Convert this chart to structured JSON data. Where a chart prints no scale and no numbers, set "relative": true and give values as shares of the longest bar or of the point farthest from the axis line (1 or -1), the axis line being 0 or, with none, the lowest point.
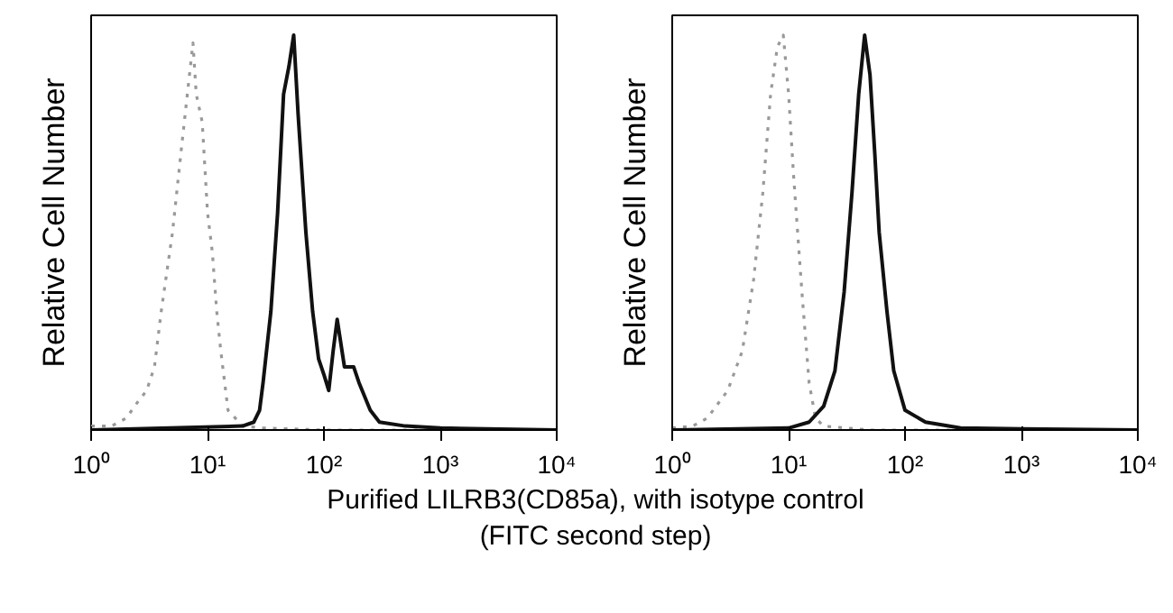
{
  "chart_data": [
    {
      "type": "line",
      "relative": true,
      "ylabel": "Relative Cell Number",
      "xlabel": "Purified LILRB3(CD85a), with isotype control\n(FITC second step)",
      "log": "x",
      "xlim": [
        1,
        10000
      ],
      "xticks": [
        {
          "value": 1,
          "label": "10⁰"
        },
        {
          "value": 10,
          "label": "10¹"
        },
        {
          "value": 100,
          "label": "10²"
        },
        {
          "value": 1000,
          "label": "10³"
        },
        {
          "value": 10000,
          "label": "10⁴"
        }
      ],
      "grid": false,
      "marker": "none",
      "series": [
        {
          "color": "#999999",
          "line_style": "dotted",
          "x": [
            1,
            1.5,
            2,
            2.5,
            3,
            3.5,
            4,
            5,
            6,
            7,
            7.5,
            8,
            9,
            10,
            11,
            12,
            13,
            15,
            20,
            30,
            100,
            10000
          ],
          "values": [
            0.01,
            0.01,
            0.03,
            0.07,
            0.1,
            0.16,
            0.3,
            0.5,
            0.72,
            0.9,
            0.98,
            0.85,
            0.78,
            0.55,
            0.45,
            0.3,
            0.2,
            0.05,
            0.01,
            0.005,
            0,
            0
          ]
        },
        {
          "color": "#111111",
          "line_style": "solid",
          "x": [
            1,
            20,
            25,
            28,
            30,
            35,
            40,
            45,
            50,
            55,
            60,
            70,
            80,
            90,
            100,
            110,
            120,
            130,
            150,
            180,
            200,
            250,
            300,
            500,
            1000,
            10000
          ],
          "values": [
            0,
            0.01,
            0.02,
            0.05,
            0.12,
            0.3,
            0.55,
            0.85,
            0.92,
            1.0,
            0.8,
            0.5,
            0.3,
            0.18,
            0.14,
            0.1,
            0.2,
            0.28,
            0.16,
            0.16,
            0.12,
            0.05,
            0.02,
            0.01,
            0.005,
            0
          ]
        }
      ]
    },
    {
      "type": "line",
      "relative": true,
      "ylabel": "Relative Cell Number",
      "log": "x",
      "xlim": [
        1,
        10000
      ],
      "xticks": [
        {
          "value": 1,
          "label": "10⁰"
        },
        {
          "value": 10,
          "label": "10¹"
        },
        {
          "value": 100,
          "label": "10²"
        },
        {
          "value": 1000,
          "label": "10³"
        },
        {
          "value": 10000,
          "label": "10⁴"
        }
      ],
      "grid": false,
      "marker": "none",
      "series": [
        {
          "color": "#999999",
          "line_style": "dotted",
          "x": [
            1,
            1.5,
            2,
            3,
            4,
            5,
            6,
            7,
            8,
            9,
            10,
            11,
            13,
            15,
            17,
            20,
            50,
            10000
          ],
          "values": [
            0.005,
            0.01,
            0.03,
            0.1,
            0.2,
            0.38,
            0.6,
            0.85,
            0.97,
            1.0,
            0.85,
            0.65,
            0.35,
            0.12,
            0.03,
            0.01,
            0,
            0
          ]
        },
        {
          "color": "#111111",
          "line_style": "solid",
          "x": [
            1,
            10,
            15,
            20,
            25,
            30,
            35,
            40,
            45,
            50,
            55,
            60,
            70,
            80,
            100,
            150,
            300,
            1000,
            10000
          ],
          "values": [
            0,
            0.005,
            0.02,
            0.06,
            0.15,
            0.35,
            0.6,
            0.85,
            1.0,
            0.9,
            0.7,
            0.5,
            0.3,
            0.15,
            0.05,
            0.02,
            0.005,
            0.003,
            0
          ]
        }
      ]
    }
  ]
}
